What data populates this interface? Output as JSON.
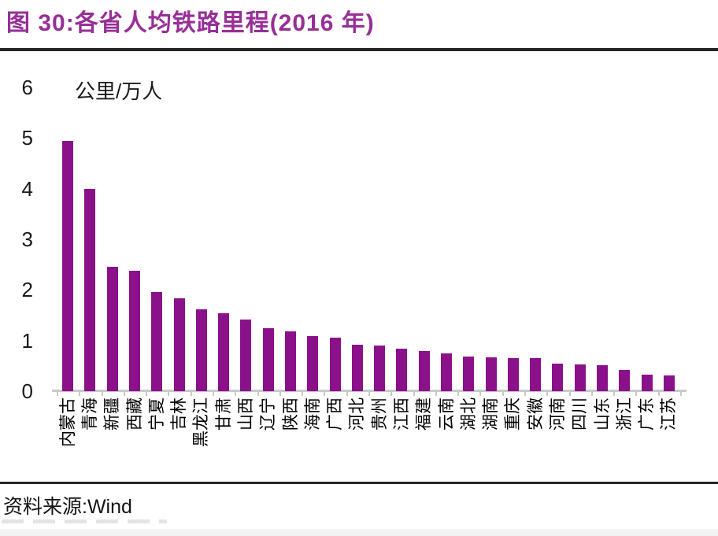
{
  "header": {
    "title": "图 30:各省人均铁路里程(2016 年)",
    "title_color": "#972f97"
  },
  "chart_data": {
    "type": "bar",
    "title": "图 30:各省人均铁路里程(2016 年)",
    "unit_label": "公里/万人",
    "categories": [
      "内蒙古",
      "青海",
      "新疆",
      "西藏",
      "宁夏",
      "吉林",
      "黑龙江",
      "甘肃",
      "山西",
      "辽宁",
      "陕西",
      "海南",
      "广西",
      "河北",
      "贵州",
      "江西",
      "福建",
      "云南",
      "湖北",
      "湖南",
      "重庆",
      "安徽",
      "河南",
      "四川",
      "山东",
      "浙江",
      "广东",
      "江苏"
    ],
    "values": [
      4.95,
      4.0,
      2.46,
      2.38,
      1.96,
      1.84,
      1.62,
      1.54,
      1.42,
      1.25,
      1.18,
      1.09,
      1.05,
      0.91,
      0.9,
      0.84,
      0.79,
      0.74,
      0.69,
      0.67,
      0.66,
      0.65,
      0.55,
      0.53,
      0.51,
      0.42,
      0.33,
      0.31
    ],
    "ylim": [
      0,
      6
    ],
    "yticks": [
      0,
      1,
      2,
      3,
      4,
      5,
      6
    ],
    "xlabel": "",
    "ylabel": "公里/万人",
    "grid": false,
    "legend_position": "none",
    "bar_color": "#8b118b",
    "axis_color": "#c9c9c9"
  },
  "footer": {
    "source_label": "资料来源:Wind"
  }
}
